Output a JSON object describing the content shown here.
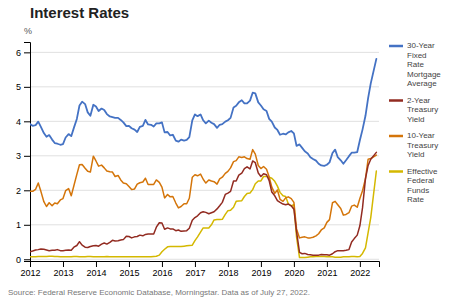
{
  "chart_data": {
    "type": "line",
    "title": "Interest Rates",
    "y_label": "%",
    "annotations": [
      "Source: Federal Reserve Economic Database, Morningstar. Data as of July 27, 2022."
    ],
    "xlim": [
      2012.0,
      2022.58
    ],
    "xticks": [
      2012,
      2013,
      2014,
      2015,
      2016,
      2017,
      2018,
      2019,
      2020,
      2021,
      2022
    ],
    "ylim": [
      -0.05,
      6.3
    ],
    "yticks": [
      0,
      1,
      2,
      3,
      4,
      5,
      6
    ],
    "grid": true,
    "x": [
      2012.0,
      2012.08,
      2012.17,
      2012.25,
      2012.33,
      2012.42,
      2012.5,
      2012.58,
      2012.67,
      2012.75,
      2012.83,
      2012.92,
      2013.0,
      2013.08,
      2013.17,
      2013.25,
      2013.33,
      2013.42,
      2013.5,
      2013.58,
      2013.67,
      2013.75,
      2013.83,
      2013.92,
      2014.0,
      2014.08,
      2014.17,
      2014.25,
      2014.33,
      2014.42,
      2014.5,
      2014.58,
      2014.67,
      2014.75,
      2014.83,
      2014.92,
      2015.0,
      2015.08,
      2015.17,
      2015.25,
      2015.33,
      2015.42,
      2015.5,
      2015.58,
      2015.67,
      2015.75,
      2015.83,
      2015.92,
      2016.0,
      2016.08,
      2016.17,
      2016.25,
      2016.33,
      2016.42,
      2016.5,
      2016.58,
      2016.67,
      2016.75,
      2016.83,
      2016.92,
      2017.0,
      2017.08,
      2017.17,
      2017.25,
      2017.33,
      2017.42,
      2017.5,
      2017.58,
      2017.67,
      2017.75,
      2017.83,
      2017.92,
      2018.0,
      2018.08,
      2018.17,
      2018.25,
      2018.33,
      2018.42,
      2018.5,
      2018.58,
      2018.67,
      2018.75,
      2018.83,
      2018.92,
      2019.0,
      2019.08,
      2019.17,
      2019.25,
      2019.33,
      2019.42,
      2019.5,
      2019.58,
      2019.67,
      2019.75,
      2019.83,
      2019.92,
      2020.0,
      2020.08,
      2020.17,
      2020.25,
      2020.33,
      2020.42,
      2020.5,
      2020.58,
      2020.67,
      2020.75,
      2020.83,
      2020.92,
      2021.0,
      2021.08,
      2021.17,
      2021.25,
      2021.33,
      2021.42,
      2021.5,
      2021.58,
      2021.67,
      2021.75,
      2021.83,
      2021.92,
      2022.0,
      2022.08,
      2022.17,
      2022.25,
      2022.33,
      2022.5
    ],
    "series": [
      {
        "name": "30-Year\nFixed\nRate\nMortgage\nAverage",
        "color": "#4472c4",
        "values": [
          3.92,
          3.87,
          3.89,
          3.99,
          3.84,
          3.66,
          3.55,
          3.6,
          3.47,
          3.37,
          3.35,
          3.32,
          3.34,
          3.53,
          3.63,
          3.57,
          3.81,
          4.07,
          4.46,
          4.57,
          4.5,
          4.26,
          4.16,
          4.48,
          4.43,
          4.3,
          4.37,
          4.33,
          4.21,
          4.14,
          4.12,
          4.1,
          4.1,
          4.04,
          3.97,
          3.86,
          3.87,
          3.8,
          3.76,
          3.69,
          3.84,
          3.87,
          4.04,
          3.91,
          3.9,
          3.85,
          3.94,
          3.94,
          3.97,
          3.68,
          3.69,
          3.59,
          3.61,
          3.44,
          3.41,
          3.47,
          3.44,
          3.46,
          3.54,
          4.03,
          4.2,
          4.15,
          4.2,
          4.03,
          3.94,
          4.02,
          3.96,
          3.92,
          3.81,
          3.9,
          3.92,
          3.99,
          4.03,
          4.1,
          4.4,
          4.45,
          4.55,
          4.61,
          4.52,
          4.52,
          4.6,
          4.83,
          4.81,
          4.55,
          4.46,
          4.35,
          4.3,
          4.07,
          3.99,
          3.82,
          3.75,
          3.61,
          3.64,
          3.62,
          3.68,
          3.72,
          3.65,
          3.29,
          3.33,
          3.23,
          3.13,
          3.07,
          2.96,
          2.91,
          2.86,
          2.77,
          2.72,
          2.71,
          2.74,
          2.81,
          3.08,
          3.18,
          2.96,
          2.87,
          2.77,
          2.87,
          2.99,
          3.09,
          3.09,
          3.11,
          3.45,
          3.76,
          4.16,
          4.67,
          5.1,
          5.81
        ]
      },
      {
        "name": "2-Year\nTreasury\nYield",
        "color": "#922b21",
        "values": [
          0.22,
          0.24,
          0.27,
          0.28,
          0.3,
          0.29,
          0.27,
          0.25,
          0.26,
          0.26,
          0.28,
          0.25,
          0.25,
          0.26,
          0.27,
          0.26,
          0.35,
          0.4,
          0.51,
          0.41,
          0.35,
          0.34,
          0.37,
          0.39,
          0.4,
          0.38,
          0.44,
          0.47,
          0.44,
          0.49,
          0.55,
          0.53,
          0.54,
          0.56,
          0.57,
          0.67,
          0.66,
          0.62,
          0.65,
          0.66,
          0.7,
          0.68,
          0.72,
          0.73,
          0.73,
          0.73,
          0.93,
          1.06,
          1.05,
          0.87,
          0.91,
          0.88,
          0.88,
          0.83,
          0.85,
          0.81,
          0.82,
          0.83,
          0.9,
          1.13,
          1.21,
          1.26,
          1.35,
          1.38,
          1.36,
          1.32,
          1.35,
          1.38,
          1.46,
          1.55,
          1.65,
          1.88,
          1.92,
          1.97,
          2.27,
          2.27,
          2.44,
          2.5,
          2.63,
          2.68,
          2.62,
          2.85,
          2.8,
          2.5,
          2.4,
          2.48,
          2.45,
          2.28,
          1.95,
          1.84,
          1.7,
          1.65,
          1.6,
          1.58,
          1.6,
          1.55,
          1.45,
          0.8,
          0.2,
          0.16,
          0.17,
          0.14,
          0.13,
          0.12,
          0.12,
          0.12,
          0.14,
          0.13,
          0.13,
          0.12,
          0.16,
          0.22,
          0.25,
          0.25,
          0.25,
          0.26,
          0.28,
          0.5,
          0.6,
          0.7,
          0.97,
          1.49,
          2.34,
          2.72,
          2.9,
          3.1
        ]
      },
      {
        "name": "10-Year\nTreasury\nYield",
        "color": "#d4750a",
        "values": [
          1.97,
          1.97,
          2.03,
          2.21,
          1.97,
          1.67,
          1.53,
          1.64,
          1.55,
          1.63,
          1.61,
          1.72,
          1.76,
          1.99,
          2.05,
          1.84,
          2.13,
          2.46,
          2.74,
          2.75,
          2.64,
          2.55,
          2.53,
          2.99,
          2.85,
          2.7,
          2.73,
          2.65,
          2.56,
          2.54,
          2.53,
          2.4,
          2.43,
          2.3,
          2.21,
          2.19,
          2.11,
          2.02,
          2.04,
          2.18,
          2.22,
          2.24,
          2.35,
          2.17,
          2.17,
          2.17,
          2.3,
          2.23,
          2.09,
          1.78,
          1.88,
          1.81,
          1.82,
          1.63,
          1.49,
          1.53,
          1.61,
          1.61,
          1.77,
          2.38,
          2.45,
          2.42,
          2.47,
          2.32,
          2.21,
          2.3,
          2.27,
          2.25,
          2.18,
          2.33,
          2.38,
          2.49,
          2.55,
          2.65,
          2.83,
          2.86,
          2.97,
          2.95,
          2.97,
          2.92,
          2.9,
          3.18,
          3.05,
          2.72,
          2.63,
          2.69,
          2.61,
          2.39,
          2.09,
          1.91,
          2.01,
          1.74,
          1.68,
          1.78,
          1.81,
          1.76,
          1.65,
          0.88,
          0.62,
          0.64,
          0.65,
          0.62,
          0.62,
          0.64,
          0.68,
          0.74,
          0.85,
          0.91,
          1.07,
          1.15,
          1.64,
          1.68,
          1.58,
          1.47,
          1.28,
          1.3,
          1.35,
          1.54,
          1.57,
          1.51,
          1.76,
          1.99,
          2.34,
          2.9,
          2.92,
          3.02
        ]
      },
      {
        "name": "Effective\nFederal\nFunds\nRate",
        "color": "#d4b800",
        "values": [
          0.07,
          0.07,
          0.07,
          0.08,
          0.08,
          0.08,
          0.08,
          0.09,
          0.09,
          0.08,
          0.08,
          0.07,
          0.07,
          0.07,
          0.07,
          0.07,
          0.08,
          0.08,
          0.07,
          0.07,
          0.07,
          0.08,
          0.08,
          0.07,
          0.07,
          0.07,
          0.07,
          0.07,
          0.08,
          0.07,
          0.07,
          0.07,
          0.07,
          0.07,
          0.07,
          0.07,
          0.07,
          0.07,
          0.07,
          0.07,
          0.07,
          0.07,
          0.07,
          0.07,
          0.07,
          0.08,
          0.09,
          0.12,
          0.22,
          0.29,
          0.36,
          0.37,
          0.37,
          0.37,
          0.37,
          0.37,
          0.38,
          0.39,
          0.4,
          0.41,
          0.54,
          0.65,
          0.79,
          0.91,
          0.91,
          0.91,
          1.0,
          1.14,
          1.15,
          1.15,
          1.16,
          1.3,
          1.41,
          1.42,
          1.51,
          1.68,
          1.69,
          1.7,
          1.82,
          1.91,
          1.92,
          2.02,
          2.19,
          2.27,
          2.27,
          2.4,
          2.4,
          2.38,
          2.35,
          2.26,
          2.12,
          1.94,
          1.84,
          1.82,
          1.61,
          1.55,
          1.58,
          0.65,
          0.05,
          0.05,
          0.05,
          0.06,
          0.07,
          0.07,
          0.08,
          0.08,
          0.08,
          0.08,
          0.07,
          0.08,
          0.07,
          0.06,
          0.06,
          0.06,
          0.07,
          0.07,
          0.07,
          0.08,
          0.08,
          0.07,
          0.08,
          0.17,
          0.33,
          0.77,
          1.21,
          2.56
        ]
      }
    ]
  }
}
